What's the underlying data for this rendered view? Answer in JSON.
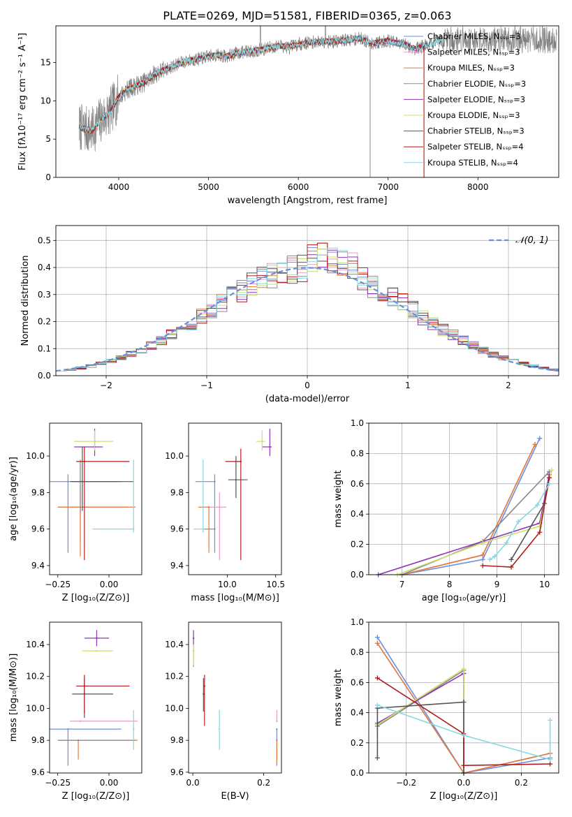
{
  "figure_title": "PLATE=0269, MJD=51581, FIBERID=0365, z=0.063",
  "model_colors": [
    "#6a8fde",
    "#e69bc9",
    "#e07b3c",
    "#8a8a8a",
    "#8e34b4",
    "#cbe06a",
    "#555555",
    "#b01c1c",
    "#86d8e0"
  ],
  "chart_data": [
    {
      "id": "spectrum",
      "type": "line",
      "xlabel": "wavelength [Angstrom, rest frame]",
      "ylabel": "Flux [fλ10⁻¹⁷ erg cm⁻² s⁻¹ A⁻¹]",
      "xlim": [
        3300,
        8900
      ],
      "ylim": [
        0,
        19.8
      ],
      "xticks": [
        4000,
        5000,
        6000,
        7000,
        8000
      ],
      "yticks": [
        0,
        5,
        10,
        15
      ],
      "legend": "upper right",
      "legend_entries": [
        "Chabrier MILES, Nₛₛₚ=3",
        "Salpeter MILES, Nₛₛₚ=3",
        "Kroupa MILES, Nₛₛₚ=3",
        "Chabrier ELODIE, Nₛₛₚ=3",
        "Salpeter ELODIE, Nₛₛₚ=3",
        "Kroupa ELODIE, Nₛₛₚ=3",
        "Chabrier STELIB, Nₛₛₚ=3",
        "Salpeter STELIB, Nₛₛₚ=4",
        "Kroupa STELIB, Nₛₛₚ=4"
      ],
      "continuum": {
        "wavelength": [
          3570,
          3700,
          3800,
          3900,
          3950,
          4000,
          4100,
          4200,
          4300,
          4400,
          4500,
          4600,
          4700,
          4800,
          4900,
          5000,
          5100,
          5200,
          5300,
          5400,
          5500,
          5600,
          5700,
          5800,
          5900,
          6000,
          6100,
          6200,
          6300,
          6400,
          6500,
          6600,
          6700,
          6800,
          6900,
          7000,
          7100,
          7200,
          7300,
          7400,
          7500,
          7600
        ],
        "flux": [
          6.5,
          6.0,
          7.5,
          8.5,
          9.5,
          10.5,
          11.5,
          12.0,
          12.5,
          13.5,
          14.0,
          14.5,
          15.0,
          15.3,
          15.5,
          15.8,
          16.0,
          15.8,
          16.2,
          16.4,
          16.5,
          16.7,
          17.0,
          17.2,
          17.0,
          17.4,
          17.6,
          17.7,
          17.8,
          17.7,
          17.9,
          18.0,
          18.2,
          17.5,
          17.6,
          17.9,
          17.5,
          17.3,
          16.8,
          17.2,
          17.5,
          18.0
        ]
      }
    },
    {
      "id": "residuals",
      "type": "line",
      "xlabel": "(data-model)/error",
      "ylabel": "Normed distribution",
      "xlim": [
        -2.5,
        2.5
      ],
      "ylim": [
        0,
        0.555
      ],
      "xticks": [
        -2,
        -1,
        0,
        1,
        2
      ],
      "yticks": [
        0.0,
        0.1,
        0.2,
        0.3,
        0.4,
        0.5
      ],
      "grid": true,
      "legend": "upper right",
      "gaussian_label": "𝒩(0, 1)",
      "bin_width": 0.1
    },
    {
      "id": "age_vs_Z",
      "type": "scatter",
      "xlabel": "Z [log₁₀(Z/Z⊙)]",
      "ylabel": "age  [log₁₀(age/yr)]",
      "xlim": [
        -0.29,
        0.16
      ],
      "ylim": [
        9.35,
        10.18
      ],
      "xticks": [
        -0.25,
        0.0
      ],
      "yticks": [
        9.4,
        9.6,
        9.8,
        10.0
      ],
      "points": [
        {
          "model": 0,
          "x": -0.2,
          "y": 9.86,
          "xerr": [
            0.1,
            0.26
          ],
          "yerr": [
            0.39,
            0.04
          ]
        },
        {
          "model": 1,
          "x": -0.14,
          "y": 9.72,
          "xerr": [
            0.11,
            0.23
          ],
          "yerr": [
            0.2,
            0.25
          ]
        },
        {
          "model": 2,
          "x": -0.14,
          "y": 9.72,
          "xerr": [
            0.11,
            0.27
          ],
          "yerr": [
            0.27,
            0.12
          ]
        },
        {
          "model": 3,
          "x": -0.14,
          "y": 9.86,
          "xerr": [
            0.04,
            0.18
          ],
          "yerr": [
            0.16,
            0.12
          ]
        },
        {
          "model": 4,
          "x": -0.07,
          "y": 10.05,
          "xerr": [
            0.1,
            0.04
          ],
          "yerr": [
            0.05,
            0.1
          ]
        },
        {
          "model": 5,
          "x": -0.07,
          "y": 10.08,
          "xerr": [
            0.1,
            0.09
          ],
          "yerr": [
            0.05,
            0.06
          ]
        },
        {
          "model": 6,
          "x": -0.13,
          "y": 9.86,
          "xerr": [
            0.06,
            0.25
          ],
          "yerr": [
            0.16,
            0.19
          ]
        },
        {
          "model": 7,
          "x": -0.12,
          "y": 9.97,
          "xerr": [
            0.04,
            0.22
          ],
          "yerr": [
            0.54,
            0.08
          ]
        },
        {
          "model": 8,
          "x": 0.12,
          "y": 9.6,
          "xerr": [
            0.2,
            0.0
          ],
          "yerr": [
            0.02,
            0.38
          ]
        }
      ]
    },
    {
      "id": "age_vs_mass",
      "type": "scatter",
      "xlabel": "mass [log₁₀(M/M⊙)]",
      "ylabel": "",
      "xlim": [
        9.6,
        10.56
      ],
      "ylim": [
        9.35,
        10.18
      ],
      "xticks": [
        9.5,
        10.0,
        10.5
      ],
      "yticks": [
        9.4,
        9.6,
        9.8,
        10.0
      ],
      "points": [
        {
          "model": 0,
          "x": 9.87,
          "y": 9.86,
          "xerr": [
            0.2,
            0.0
          ],
          "yerr": [
            0.39,
            0.04
          ]
        },
        {
          "model": 1,
          "x": 9.92,
          "y": 9.72,
          "xerr": [
            0.13,
            0.07
          ],
          "yerr": [
            0.29,
            0.08
          ]
        },
        {
          "model": 2,
          "x": 9.81,
          "y": 9.72,
          "xerr": [
            0.11,
            0.0
          ],
          "yerr": [
            0.25,
            0.0
          ]
        },
        {
          "model": 3,
          "x": 9.87,
          "y": 9.6,
          "xerr": [
            0.11,
            0.0
          ],
          "yerr": [
            0.0,
            0.0
          ]
        },
        {
          "model": 4,
          "x": 10.44,
          "y": 10.05,
          "xerr": [
            0.08,
            0.02
          ],
          "yerr": [
            0.05,
            0.1
          ]
        },
        {
          "model": 5,
          "x": 10.36,
          "y": 10.08,
          "xerr": [
            0.06,
            0.03
          ],
          "yerr": [
            0.05,
            0.06
          ]
        },
        {
          "model": 6,
          "x": 10.09,
          "y": 9.87,
          "xerr": [
            0.08,
            0.12
          ],
          "yerr": [
            0.1,
            0.13
          ]
        },
        {
          "model": 7,
          "x": 10.14,
          "y": 9.97,
          "xerr": [
            0.16,
            0.0
          ],
          "yerr": [
            0.54,
            0.07
          ]
        },
        {
          "model": 8,
          "x": 9.75,
          "y": 9.6,
          "xerr": [
            0.1,
            0.0
          ],
          "yerr": [
            0.02,
            0.38
          ]
        }
      ]
    },
    {
      "id": "weight_vs_age",
      "type": "line",
      "xlabel": "age  [log₁₀(age/yr)]",
      "ylabel": "mass weight",
      "xlim": [
        6.3,
        10.3
      ],
      "ylim": [
        0,
        1.0
      ],
      "xticks": [
        7,
        8,
        9,
        10
      ],
      "yticks": [
        0.0,
        0.2,
        0.4,
        0.6,
        0.8,
        1.0
      ],
      "grid": true,
      "series": [
        {
          "model": 0,
          "x": [
            7.0,
            8.7,
            9.9
          ],
          "y": [
            0.0,
            0.1,
            0.9
          ]
        },
        {
          "model": 1,
          "x": [
            7.0,
            8.7,
            9.8
          ],
          "y": [
            0.0,
            0.13,
            0.86
          ]
        },
        {
          "model": 2,
          "x": [
            7.0,
            8.7,
            9.8
          ],
          "y": [
            0.0,
            0.13,
            0.86
          ]
        },
        {
          "model": 3,
          "x": [
            7.0,
            8.7,
            10.1
          ],
          "y": [
            0.0,
            0.22,
            0.68
          ]
        },
        {
          "model": 4,
          "x": [
            6.5,
            9.9,
            10.1
          ],
          "y": [
            0.0,
            0.34,
            0.66
          ]
        },
        {
          "model": 5,
          "x": [
            6.9,
            8.7,
            9.9,
            10.15
          ],
          "y": [
            0.0,
            0.21,
            0.32,
            0.69
          ]
        },
        {
          "model": 6,
          "x": [
            9.3,
            10.0,
            10.1
          ],
          "y": [
            0.1,
            0.47,
            0.64
          ]
        },
        {
          "model": 7,
          "x": [
            8.7,
            9.3,
            9.9,
            10.1
          ],
          "y": [
            0.06,
            0.05,
            0.28,
            0.64
          ]
        },
        {
          "model": 8,
          "x": [
            8.85,
            8.95,
            9.2,
            9.45,
            9.85,
            10.1
          ],
          "y": [
            0.1,
            0.12,
            0.21,
            0.35,
            0.46,
            0.6
          ]
        }
      ]
    },
    {
      "id": "mass_vs_Z",
      "type": "scatter",
      "xlabel": "Z [log₁₀(Z/Z⊙)]",
      "ylabel": "mass [log₁₀(M/M⊙)]",
      "xlim": [
        -0.29,
        0.16
      ],
      "ylim": [
        9.595,
        10.54
      ],
      "xticks": [
        -0.25,
        0.0
      ],
      "yticks": [
        9.6,
        9.8,
        10.0,
        10.2,
        10.4
      ],
      "points": [
        {
          "model": 0,
          "x": -0.2,
          "y": 9.87,
          "xerr": [
            0.1,
            0.26
          ],
          "yerr": [
            0.23,
            0.0
          ]
        },
        {
          "model": 1,
          "x": -0.14,
          "y": 9.92,
          "xerr": [
            0.05,
            0.28
          ],
          "yerr": [
            0.0,
            0.0
          ]
        },
        {
          "model": 2,
          "x": -0.15,
          "y": 9.8,
          "xerr": [
            0.1,
            0.29
          ],
          "yerr": [
            0.12,
            0.0
          ]
        },
        {
          "model": 3,
          "x": -0.15,
          "y": 9.8,
          "xerr": [
            0.1,
            0.28
          ],
          "yerr": [
            0.0,
            0.0
          ]
        },
        {
          "model": 4,
          "x": -0.06,
          "y": 10.44,
          "xerr": [
            0.06,
            0.06
          ],
          "yerr": [
            0.05,
            0.05
          ]
        },
        {
          "model": 5,
          "x": -0.06,
          "y": 10.36,
          "xerr": [
            0.07,
            0.08
          ],
          "yerr": [
            0.0,
            0.0
          ]
        },
        {
          "model": 6,
          "x": -0.12,
          "y": 10.09,
          "xerr": [
            0.06,
            0.14
          ],
          "yerr": [
            0.15,
            0.1
          ]
        },
        {
          "model": 7,
          "x": -0.12,
          "y": 10.14,
          "xerr": [
            0.04,
            0.22
          ],
          "yerr": [
            0.17,
            0.07
          ]
        },
        {
          "model": 8,
          "x": 0.12,
          "y": 9.87,
          "xerr": [
            0.0,
            0.0
          ],
          "yerr": [
            0.13,
            0.12
          ]
        }
      ]
    },
    {
      "id": "mass_vs_EBV",
      "type": "scatter",
      "xlabel": "E(B-V)",
      "ylabel": "",
      "xlim": [
        -0.012,
        0.25
      ],
      "ylim": [
        9.595,
        10.54
      ],
      "xticks": [
        0.0,
        0.2
      ],
      "yticks": [
        9.6,
        9.8,
        10.0,
        10.2,
        10.4
      ],
      "points": [
        {
          "model": 0,
          "x": 0.237,
          "y": 9.87,
          "xerr": [
            0,
            0
          ],
          "yerr": [
            0.23,
            0.0
          ]
        },
        {
          "model": 1,
          "x": 0.237,
          "y": 9.92,
          "xerr": [
            0,
            0
          ],
          "yerr": [
            0.0,
            0.07
          ]
        },
        {
          "model": 2,
          "x": 0.237,
          "y": 9.8,
          "xerr": [
            0,
            0
          ],
          "yerr": [
            0.15,
            0.0
          ]
        },
        {
          "model": 3,
          "x": 0.002,
          "y": 10.36,
          "xerr": [
            0,
            0
          ],
          "yerr": [
            0.1,
            0.04
          ]
        },
        {
          "model": 4,
          "x": 0.002,
          "y": 10.44,
          "xerr": [
            0,
            0
          ],
          "yerr": [
            0.05,
            0.05
          ]
        },
        {
          "model": 5,
          "x": 0.002,
          "y": 10.36,
          "xerr": [
            0,
            0
          ],
          "yerr": [
            0.09,
            0.04
          ]
        },
        {
          "model": 6,
          "x": 0.03,
          "y": 10.09,
          "xerr": [
            0,
            0
          ],
          "yerr": [
            0.11,
            0.1
          ]
        },
        {
          "model": 7,
          "x": 0.033,
          "y": 10.14,
          "xerr": [
            0,
            0
          ],
          "yerr": [
            0.25,
            0.07
          ]
        },
        {
          "model": 8,
          "x": 0.075,
          "y": 9.87,
          "xerr": [
            0,
            0
          ],
          "yerr": [
            0.13,
            0.12
          ]
        }
      ]
    },
    {
      "id": "weight_vs_Z",
      "type": "line",
      "xlabel": "Z [log₁₀(Z/Z⊙)]",
      "ylabel": "mass weight",
      "xlim": [
        -0.33,
        0.33
      ],
      "ylim": [
        0,
        1.0
      ],
      "xticks": [
        -0.2,
        0.0,
        0.2
      ],
      "yticks": [
        0.0,
        0.2,
        0.4,
        0.6,
        0.8,
        1.0
      ],
      "grid": true,
      "series": [
        {
          "model": 0,
          "x": [
            -0.3,
            0.0,
            0.3
          ],
          "y": [
            0.9,
            0.0,
            0.1
          ]
        },
        {
          "model": 1,
          "x": [
            -0.3,
            0.0,
            0.3
          ],
          "y": [
            0.86,
            0.0,
            0.13
          ]
        },
        {
          "model": 2,
          "x": [
            -0.3,
            0.0,
            0.3
          ],
          "y": [
            0.86,
            0.0,
            0.13
          ]
        },
        {
          "model": 3,
          "x": [
            -0.3,
            0.0,
            0.0
          ],
          "y": [
            0.31,
            0.68,
            0.0
          ]
        },
        {
          "model": 4,
          "x": [
            -0.3,
            0.0,
            0.0
          ],
          "y": [
            0.33,
            0.66,
            0.0
          ]
        },
        {
          "model": 5,
          "x": [
            -0.3,
            0.0,
            0.0
          ],
          "y": [
            0.32,
            0.69,
            0.0
          ]
        },
        {
          "model": 6,
          "x": [
            -0.3,
            -0.3,
            0.0,
            0.0
          ],
          "y": [
            0.1,
            0.43,
            0.47,
            0.0
          ]
        },
        {
          "model": 7,
          "x": [
            -0.3,
            0.0,
            0.0,
            0.3
          ],
          "y": [
            0.63,
            0.26,
            0.05,
            0.06
          ]
        },
        {
          "model": 8,
          "x": [
            -0.3,
            0.0,
            0.3,
            0.3
          ],
          "y": [
            0.45,
            0.25,
            0.09,
            0.35
          ]
        }
      ]
    }
  ]
}
